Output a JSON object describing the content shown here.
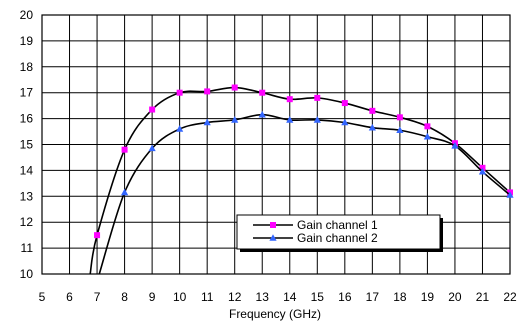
{
  "chart_data": {
    "type": "line",
    "title": "",
    "xlabel": "Frequency (GHz)",
    "ylabel": "",
    "xlim": [
      5,
      22
    ],
    "ylim": [
      10,
      20
    ],
    "xticks": [
      "5",
      "6",
      "7",
      "8",
      "9",
      "10",
      "11",
      "12",
      "13",
      "14",
      "15",
      "16",
      "17",
      "18",
      "19",
      "20",
      "21",
      "22"
    ],
    "yticks": [
      "10",
      "11",
      "12",
      "13",
      "14",
      "15",
      "16",
      "17",
      "18",
      "19",
      "20"
    ],
    "grid": true,
    "legend_position": "bottom-center",
    "series": [
      {
        "name": "Gain channel 1",
        "color": "#ff00ff",
        "marker": "square",
        "line_start": {
          "x": 6.75,
          "y": 10.0
        },
        "x": [
          7,
          8,
          9,
          10,
          11,
          12,
          13,
          14,
          15,
          16,
          17,
          18,
          19,
          20,
          21,
          22
        ],
        "y": [
          11.5,
          14.8,
          16.35,
          17.0,
          17.05,
          17.2,
          17.0,
          16.75,
          16.8,
          16.6,
          16.3,
          16.05,
          15.7,
          15.05,
          14.1,
          13.15
        ]
      },
      {
        "name": "Gain channel 2",
        "color": "#3366ff",
        "marker": "triangle",
        "line_start": {
          "x": 7.08,
          "y": 10.0
        },
        "x": [
          8,
          9,
          10,
          11,
          12,
          13,
          14,
          15,
          16,
          17,
          18,
          19,
          20,
          21,
          22
        ],
        "y": [
          13.15,
          14.85,
          15.6,
          15.85,
          15.95,
          16.15,
          15.95,
          15.95,
          15.85,
          15.65,
          15.55,
          15.3,
          14.95,
          13.95,
          13.05
        ]
      }
    ]
  }
}
